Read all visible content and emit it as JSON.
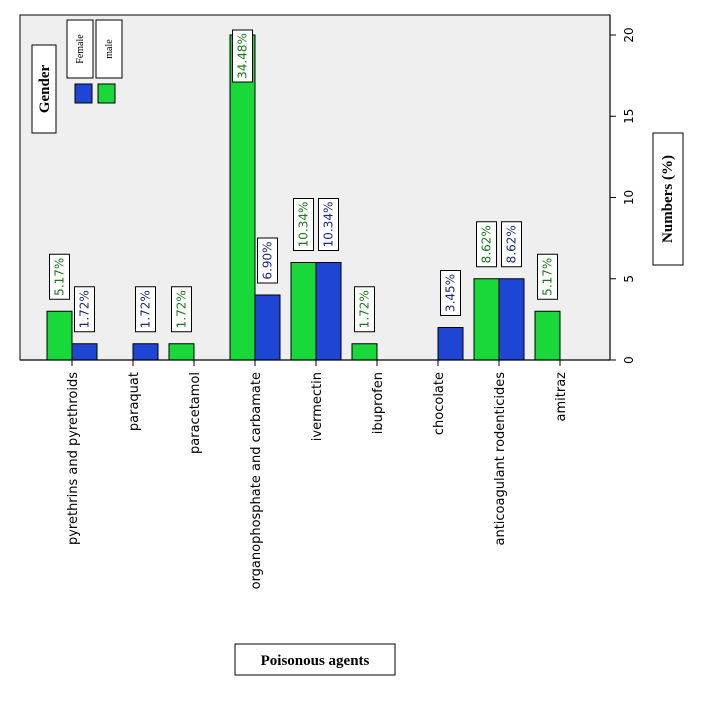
{
  "chart_data": {
    "type": "bar",
    "orientation": "rotated-90",
    "xlabel": "Poisonous agents",
    "ylabel": "Numbers (%)",
    "ylim": [
      0,
      20
    ],
    "yticks": [
      "0",
      "5",
      "10",
      "15",
      "20"
    ],
    "grid": false,
    "legend_title": "Gender",
    "legend_position": "top-left",
    "categories": [
      "pyrethrins and pyrethroids",
      "paraquat",
      "paracetamol",
      "organophosphate and carbamate",
      "ivermectin",
      "ibuprofen",
      "chocolate",
      "anticoagulant rodenticides",
      "amitraz"
    ],
    "series": [
      {
        "name": "male",
        "color": "#19d93a",
        "label_color": "#1a7a1a",
        "values": [
          3,
          0,
          1,
          20,
          6,
          1,
          0,
          5,
          3
        ],
        "labels": [
          "5.17%",
          "",
          "1.72%",
          "34.48%",
          "10.34%",
          "1.72%",
          "",
          "8.62%",
          "5.17%"
        ]
      },
      {
        "name": "Female",
        "color": "#1f45d4",
        "label_color": "#1a2a7a",
        "values": [
          1,
          1,
          0,
          4,
          6,
          0,
          2,
          5,
          0
        ],
        "labels": [
          "1.72%",
          "1.72%",
          "",
          "6.90%",
          "10.34%",
          "",
          "3.45%",
          "8.62%",
          ""
        ]
      }
    ]
  }
}
